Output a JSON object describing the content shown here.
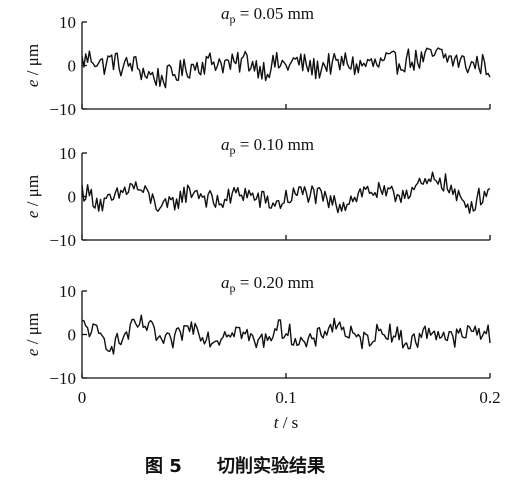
{
  "chart_data": [
    {
      "type": "line",
      "title_var": "a",
      "title_sub": "p",
      "title_value": " = 0.05 mm",
      "ylabel_var": "e",
      "ylabel_unit": " / μm",
      "ylim": [
        -10,
        10
      ],
      "yticks": [
        "10",
        "0",
        "−10"
      ],
      "ytick_values": [
        10,
        0,
        -10
      ],
      "xlim": [
        0,
        0.2
      ],
      "show_xticklabels": false,
      "series": [
        {
          "x": [
            0,
            0.005,
            0.01,
            0.015,
            0.02,
            0.025,
            0.03,
            0.035,
            0.04,
            0.045,
            0.05,
            0.055,
            0.06,
            0.065,
            0.07,
            0.075,
            0.08,
            0.085,
            0.09,
            0.095,
            0.1,
            0.105,
            0.11,
            0.115,
            0.12,
            0.125,
            0.13,
            0.135,
            0.14,
            0.145,
            0.15,
            0.155,
            0.16,
            0.165,
            0.17,
            0.175,
            0.18,
            0.185,
            0.19,
            0.195,
            0.2
          ],
          "y": [
            1,
            2,
            0,
            1.5,
            -0.5,
            0.5,
            -1.5,
            -2.5,
            -3,
            -2,
            -1,
            0,
            0.5,
            1,
            0.5,
            0,
            1.5,
            0,
            -1,
            0.5,
            0,
            1,
            0,
            -1,
            0.5,
            0,
            1,
            -0.5,
            0.5,
            0,
            1,
            0.5,
            1.5,
            1,
            2,
            2.5,
            1.5,
            1,
            0,
            0.5,
            -0.5
          ],
          "noise": 2.6
        }
      ]
    },
    {
      "type": "line",
      "title_var": "a",
      "title_sub": "p",
      "title_value": " = 0.10 mm",
      "ylabel_var": "e",
      "ylabel_unit": " / μm",
      "ylim": [
        -10,
        10
      ],
      "yticks": [
        "10",
        "0",
        "−10"
      ],
      "ytick_values": [
        10,
        0,
        -10
      ],
      "xlim": [
        0,
        0.2
      ],
      "show_xticklabels": false,
      "series": [
        {
          "x": [
            0,
            0.005,
            0.01,
            0.015,
            0.02,
            0.025,
            0.03,
            0.035,
            0.04,
            0.045,
            0.05,
            0.055,
            0.06,
            0.065,
            0.07,
            0.075,
            0.08,
            0.085,
            0.09,
            0.095,
            0.1,
            0.105,
            0.11,
            0.115,
            0.12,
            0.125,
            0.13,
            0.135,
            0.14,
            0.145,
            0.15,
            0.155,
            0.16,
            0.165,
            0.17,
            0.175,
            0.18,
            0.185,
            0.19,
            0.195,
            0.2
          ],
          "y": [
            1.5,
            0,
            -2,
            -1,
            1,
            2.5,
            1,
            -1,
            -3,
            -1.5,
            0.5,
            1.5,
            0,
            -1.5,
            -1,
            0.5,
            1,
            -0.5,
            -1,
            -2,
            -0.5,
            0.5,
            1,
            0,
            -1,
            -2,
            -1,
            0.5,
            1.5,
            1,
            0,
            0.5,
            1.5,
            2,
            3,
            4.5,
            2,
            -1,
            -2,
            0,
            1.5
          ],
          "noise": 2.3
        }
      ]
    },
    {
      "type": "line",
      "title_var": "a",
      "title_sub": "p",
      "title_value": " = 0.20 mm",
      "ylabel_var": "e",
      "ylabel_unit": " / μm",
      "ylim": [
        -10,
        10
      ],
      "yticks": [
        "10",
        "0",
        "−10"
      ],
      "ytick_values": [
        10,
        0,
        -10
      ],
      "xlim": [
        0,
        0.2
      ],
      "xticks": [
        "0",
        "0.1",
        "0.2"
      ],
      "xtick_values": [
        0,
        0.1,
        0.2
      ],
      "show_xticklabels": true,
      "xlabel_var": "t",
      "xlabel_unit": " / s",
      "series": [
        {
          "x": [
            0,
            0.005,
            0.01,
            0.015,
            0.02,
            0.025,
            0.03,
            0.035,
            0.04,
            0.045,
            0.05,
            0.055,
            0.06,
            0.065,
            0.07,
            0.075,
            0.08,
            0.085,
            0.09,
            0.095,
            0.1,
            0.105,
            0.11,
            0.115,
            0.12,
            0.125,
            0.13,
            0.135,
            0.14,
            0.145,
            0.15,
            0.155,
            0.16,
            0.165,
            0.17,
            0.175,
            0.18,
            0.185,
            0.19,
            0.195,
            0.2
          ],
          "y": [
            2,
            1,
            -1,
            -2.5,
            -1,
            1.5,
            2.5,
            0.5,
            -2,
            -1.5,
            1,
            2,
            0,
            -1.5,
            0.5,
            1.5,
            0,
            -2,
            -1,
            1.5,
            1,
            -1,
            -2.5,
            -1,
            1.5,
            2.5,
            0.5,
            -1.5,
            -1,
            0.5,
            1,
            -0.5,
            -2,
            -1,
            1,
            0.5,
            -1,
            -0.5,
            0.5,
            1,
            0
          ],
          "noise": 2.2
        }
      ]
    }
  ],
  "caption": {
    "figure_no": "图 5",
    "title": "切削实验结果"
  }
}
